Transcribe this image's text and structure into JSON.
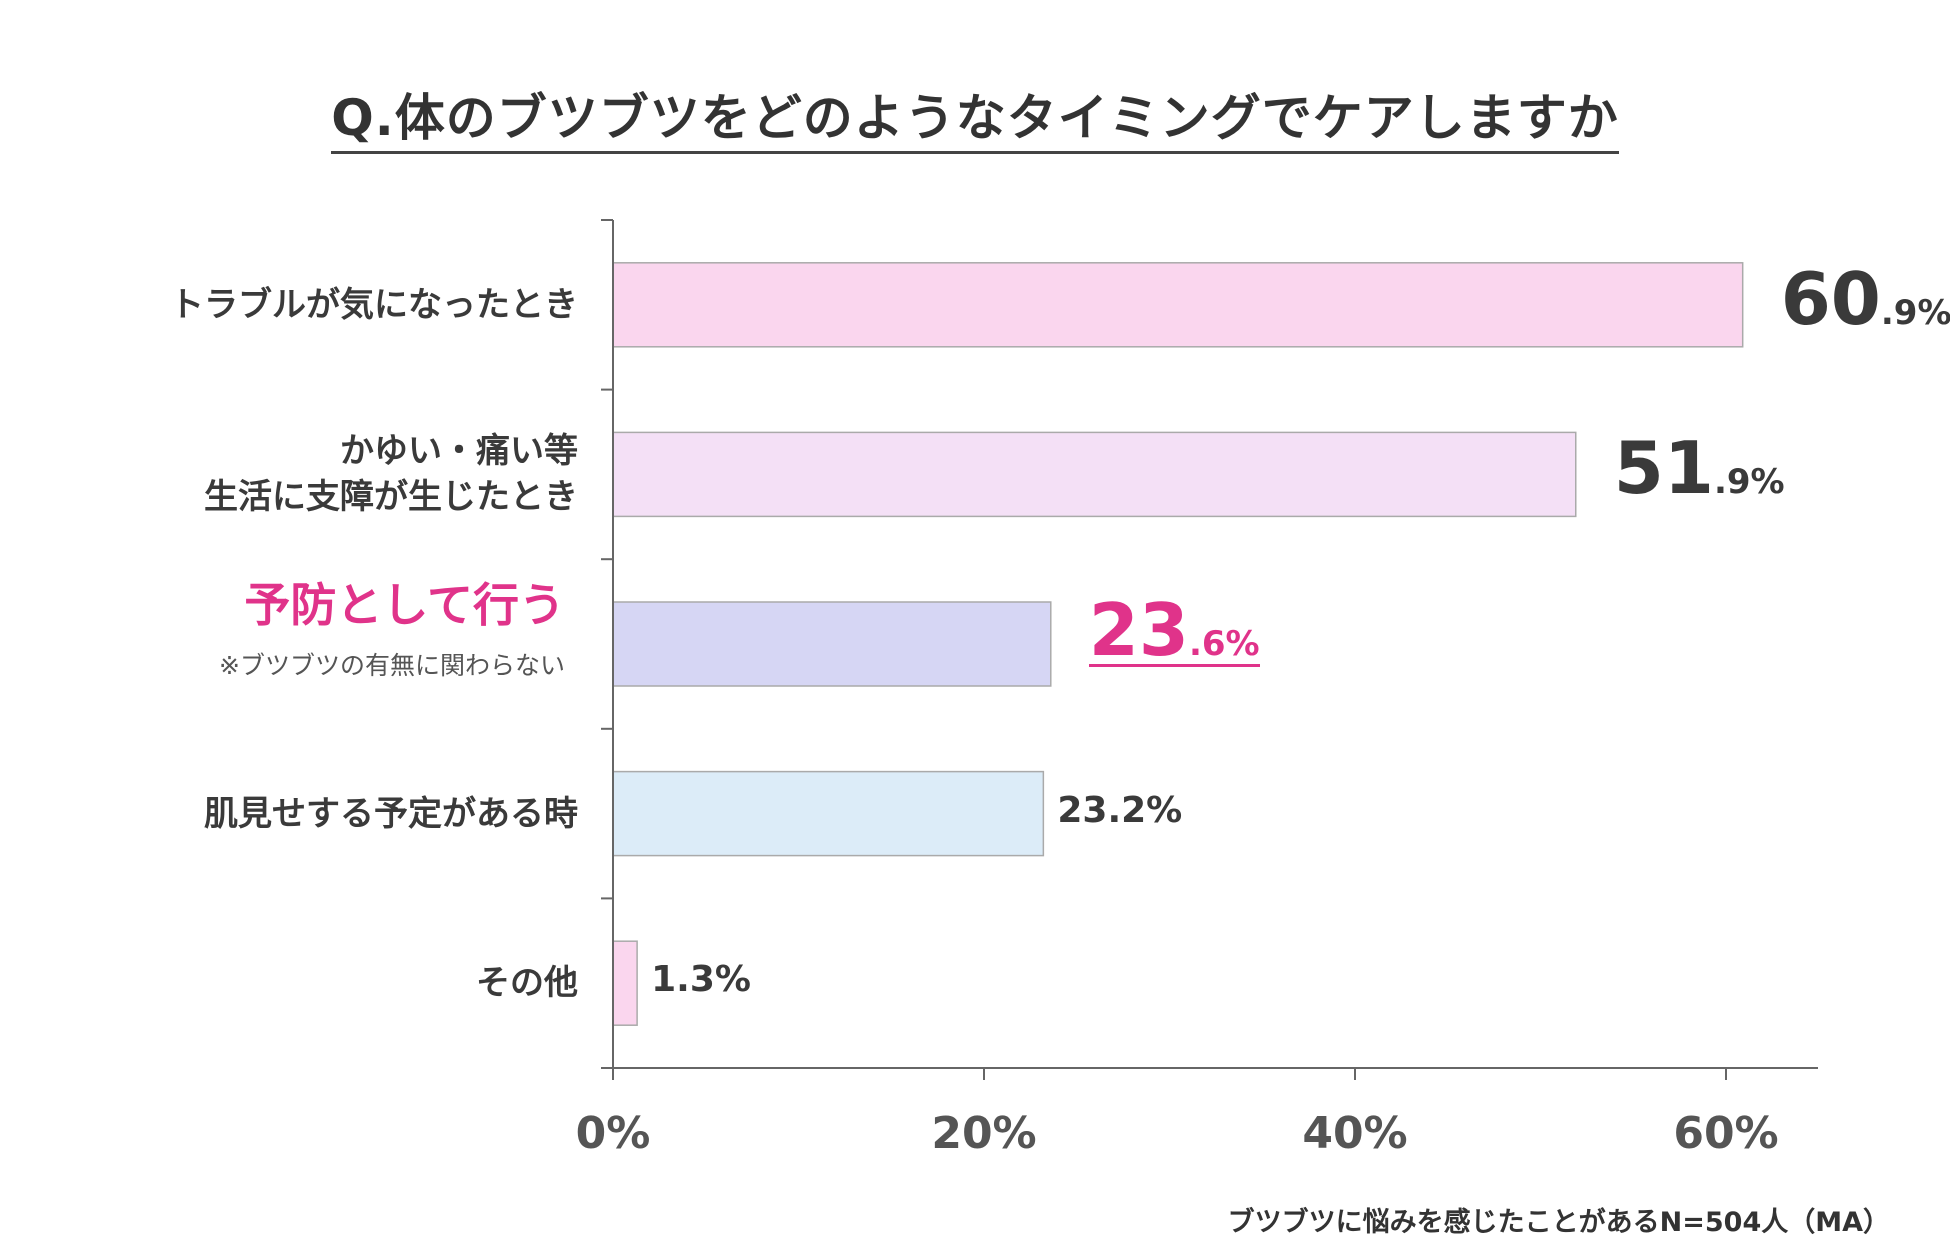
{
  "chart_data": {
    "type": "bar",
    "orientation": "horizontal",
    "title": "Q.体のブツブツをどのようなタイミングでケアしますか",
    "categories": [
      [
        "トラブルが気になったとき"
      ],
      [
        "かゆい・痛い等",
        "生活に支障が生じたとき"
      ],
      [
        "予防として行う"
      ],
      [
        "肌見せする予定がある時"
      ],
      [
        "その他"
      ]
    ],
    "category_note": "※ブツブツの有無に関わらない",
    "values": [
      60.9,
      51.9,
      23.6,
      23.2,
      1.3
    ],
    "value_labels": [
      {
        "int": "60",
        "dec": ".9%"
      },
      {
        "int": "51",
        "dec": ".9%"
      },
      {
        "int": "23",
        "dec": ".6%"
      },
      {
        "full": "23.2%"
      },
      {
        "full": "1.3%"
      }
    ],
    "bar_colors": [
      "#fad6ee",
      "#f4e0f6",
      "#d6d6f4",
      "#dcecf8",
      "#fad6ee"
    ],
    "highlight_index": 2,
    "highlight_color": "#e0338a",
    "xticks": [
      "0%",
      "20%",
      "40%",
      "60%"
    ],
    "xtick_values": [
      0,
      20,
      40,
      60
    ],
    "xlim": [
      0,
      65
    ],
    "footnote": "ブツブツに悩みを感じたことがあるN=504人（MA）"
  }
}
